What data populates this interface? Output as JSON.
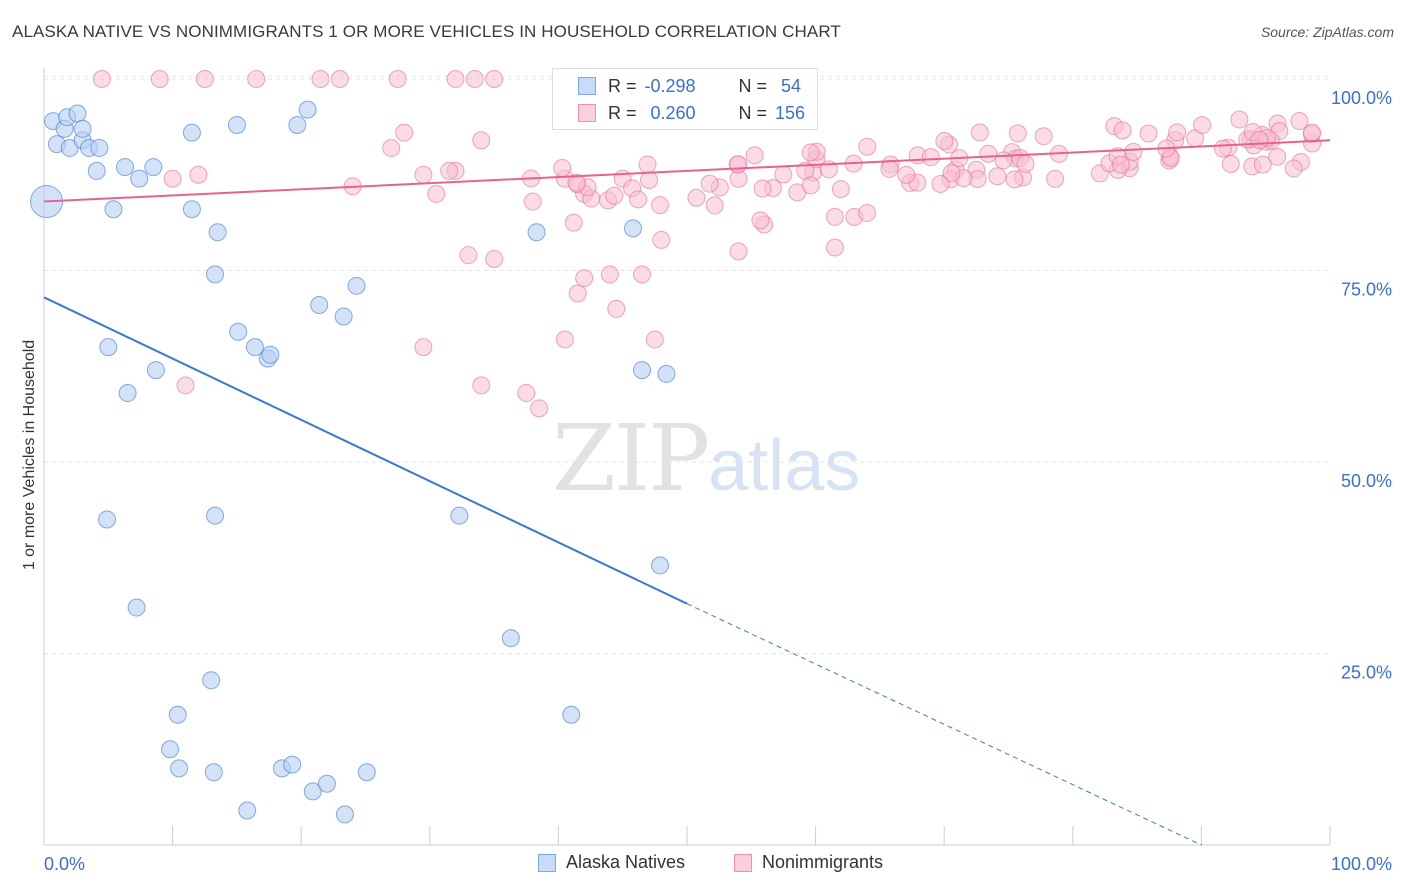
{
  "title": "ALASKA NATIVE VS NONIMMIGRANTS 1 OR MORE VEHICLES IN HOUSEHOLD CORRELATION CHART",
  "source": "Source: ZipAtlas.com",
  "watermark": {
    "zip": "ZIP",
    "atlas": "atlas"
  },
  "legend": {
    "r_label": "R =",
    "n_label": "N =",
    "rows": [
      {
        "r": "-0.298",
        "n": "54",
        "color": "#7fa8e8",
        "fill": "#c9dbf6"
      },
      {
        "r": "0.260",
        "n": "156",
        "color": "#f08fb0",
        "fill": "#fbd0de"
      }
    ]
  },
  "series_labels": [
    "Alaska Natives",
    "Nonimmigrants"
  ],
  "colors": {
    "blue": "#3a78d6",
    "blue_fill": "#b7cff2",
    "pink": "#e8628f",
    "pink_fill": "#f7bfd1",
    "axis_text": "#3b6fd4"
  },
  "chart_data": {
    "type": "scatter",
    "title": "ALASKA NATIVE VS NONIMMIGRANTS 1 OR MORE VEHICLES IN HOUSEHOLD CORRELATION CHART",
    "xlabel": "",
    "ylabel": "1 or more Vehicles in Household",
    "xlim": [
      0,
      100
    ],
    "ylim": [
      0,
      100
    ],
    "x_tick_labels": [
      "0.0%",
      "100.0%"
    ],
    "y_tick_labels": [
      "25.0%",
      "50.0%",
      "75.0%",
      "100.0%"
    ],
    "y_ticks": [
      25,
      50,
      75,
      100
    ],
    "grid": true,
    "legend_position": "top-center",
    "series": [
      {
        "name": "Alaska Natives",
        "trend": {
          "x0": 0,
          "y0": 71.5,
          "x1": 50,
          "y1": 31.5,
          "dashed_to_x": 90,
          "dashed_to_y": 0
        },
        "points": [
          [
            0.2,
            84,
            3
          ],
          [
            0.7,
            94.5,
            1
          ],
          [
            1,
            91.5,
            1
          ],
          [
            1.6,
            93.5,
            1
          ],
          [
            1.8,
            95,
            1
          ],
          [
            2,
            91,
            1
          ],
          [
            2.6,
            95.5,
            1
          ],
          [
            3,
            92,
            1
          ],
          [
            3,
            93.5,
            1
          ],
          [
            3.5,
            91,
            1
          ],
          [
            4.1,
            88,
            1
          ],
          [
            4.3,
            91,
            1
          ],
          [
            5.4,
            83,
            1
          ],
          [
            6.3,
            88.5,
            1
          ],
          [
            7.4,
            87,
            1
          ],
          [
            8.5,
            88.5,
            1
          ],
          [
            11.5,
            83,
            1
          ],
          [
            11.5,
            93,
            1
          ],
          [
            13.5,
            80,
            1
          ],
          [
            15,
            94,
            1
          ],
          [
            19.7,
            94,
            1
          ],
          [
            20.5,
            96,
            1
          ],
          [
            8.7,
            62,
            1
          ],
          [
            13.3,
            74.5,
            1
          ],
          [
            15.1,
            67,
            1
          ],
          [
            16.4,
            65,
            1
          ],
          [
            17.4,
            63.5,
            1
          ],
          [
            17.6,
            64,
            1
          ],
          [
            21.4,
            70.5,
            1
          ],
          [
            24.3,
            73,
            1
          ],
          [
            23.3,
            69,
            1
          ],
          [
            5,
            65,
            1
          ],
          [
            6.5,
            59,
            1
          ],
          [
            4.9,
            42.5,
            1
          ],
          [
            7.2,
            31,
            1
          ],
          [
            10.4,
            17,
            1
          ],
          [
            10.5,
            10,
            1
          ],
          [
            13.3,
            43,
            1
          ],
          [
            9.8,
            12.5,
            1
          ],
          [
            13.2,
            9.5,
            1
          ],
          [
            13,
            21.5,
            1
          ],
          [
            15.8,
            4.5,
            1
          ],
          [
            18.5,
            10,
            1
          ],
          [
            19.3,
            10.5,
            1
          ],
          [
            20.9,
            7,
            1
          ],
          [
            22,
            8,
            1
          ],
          [
            23.4,
            4,
            1
          ],
          [
            25.1,
            9.5,
            1
          ],
          [
            32.3,
            43,
            1
          ],
          [
            36.3,
            27,
            1
          ],
          [
            41,
            17,
            1
          ],
          [
            38.3,
            80,
            1
          ],
          [
            45.8,
            80.5,
            1
          ],
          [
            47.9,
            36.5,
            1
          ],
          [
            48.4,
            61.5,
            1
          ],
          [
            46.5,
            62,
            1
          ]
        ]
      },
      {
        "name": "Nonimmigrants",
        "trend": {
          "x0": 0,
          "y0": 84,
          "x1": 100,
          "y1": 92
        }
      }
    ]
  }
}
